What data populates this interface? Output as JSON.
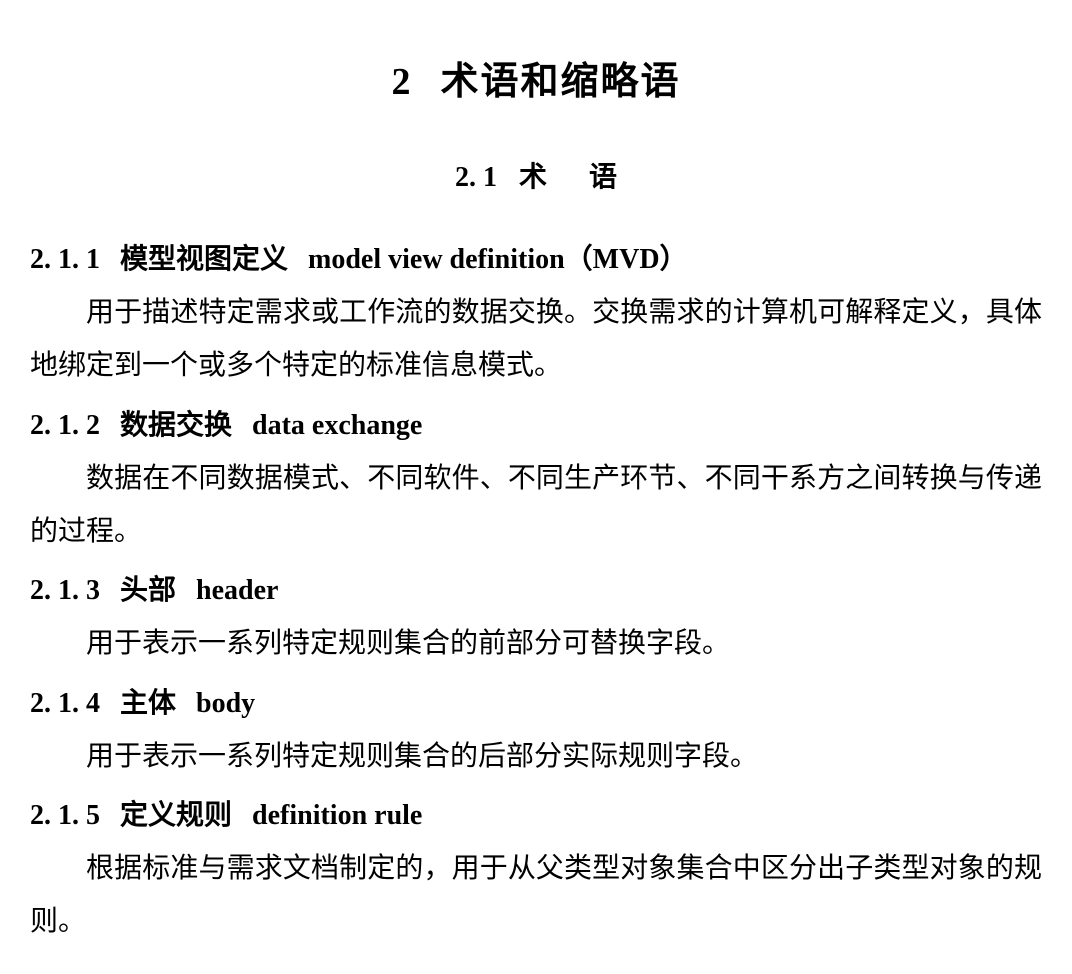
{
  "chapter": {
    "number": "2",
    "title": "术语和缩略语"
  },
  "section": {
    "number": "2. 1",
    "title_char1": "术",
    "title_char2": "语"
  },
  "terms": [
    {
      "number": "2. 1. 1",
      "cn": "模型视图定义",
      "en": "model view definition（MVD）",
      "body": "用于描述特定需求或工作流的数据交换。交换需求的计算机可解释定义，具体地绑定到一个或多个特定的标准信息模式。"
    },
    {
      "number": "2. 1. 2",
      "cn": "数据交换",
      "en": "data exchange",
      "body": "数据在不同数据模式、不同软件、不同生产环节、不同干系方之间转换与传递的过程。"
    },
    {
      "number": "2. 1. 3",
      "cn": "头部",
      "en": "header",
      "body": "用于表示一系列特定规则集合的前部分可替换字段。"
    },
    {
      "number": "2. 1. 4",
      "cn": "主体",
      "en": "body",
      "body": "用于表示一系列特定规则集合的后部分实际规则字段。"
    },
    {
      "number": "2. 1. 5",
      "cn": "定义规则",
      "en": "definition rule",
      "body": "根据标准与需求文档制定的，用于从父类型对象集合中区分出子类型对象的规则。"
    }
  ],
  "styles": {
    "background_color": "#ffffff",
    "text_color": "#000000",
    "chapter_title_fontsize": 38,
    "section_title_fontsize": 28,
    "body_fontsize": 28,
    "line_height": 1.9,
    "font_family_cn": "SimSun",
    "font_family_en": "Times New Roman"
  }
}
